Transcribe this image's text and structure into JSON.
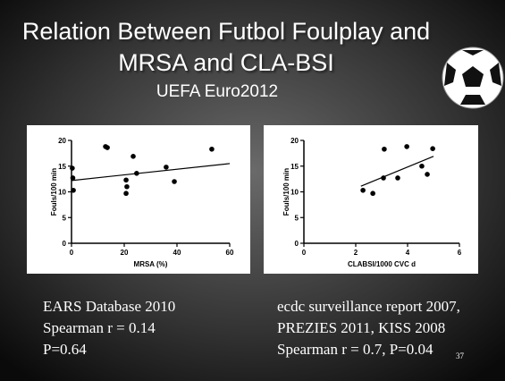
{
  "slide": {
    "title_lines": [
      "Relation Between Futbol Foulplay and",
      "MRSA and CLA-BSI"
    ],
    "subtitle": "UEFA Euro2012",
    "left_caption": [
      "EARS Database 2010",
      "Spearman r = 0.14",
      "P=0.64"
    ],
    "right_caption": [
      "ecdc surveillance report 2007,",
      "PREZIES 2011, KISS 2008",
      "Spearman r = 0.7, P=0.04"
    ],
    "page_number": "37"
  },
  "chart_data": [
    {
      "type": "scatter",
      "x_label": "MRSA (%)",
      "y_label": "Fouls/100 min",
      "color": "#000000",
      "x": [
        0.3,
        0.5,
        0.7,
        12.9,
        13.6,
        20.7,
        21,
        20.7,
        23.4,
        24.7,
        35.9,
        39,
        53.2
      ],
      "values": [
        14.6,
        12.7,
        10.3,
        18.8,
        18.6,
        12.3,
        11.0,
        9.7,
        16.9,
        13.6,
        14.8,
        12.0,
        18.3
      ],
      "trendline": {
        "x": [
          0,
          60
        ],
        "y": [
          12.2,
          15.5
        ]
      },
      "xlim": [
        0,
        60
      ],
      "xticks": [
        0,
        20,
        40,
        60
      ],
      "ylim": [
        0,
        20
      ],
      "yticks": [
        0,
        5,
        10,
        15,
        20
      ]
    },
    {
      "type": "scatter",
      "x_label": "CLABSI/1000 CVC d",
      "y_label": "Fouls/100 min",
      "color": "#000000",
      "x": [
        2.28,
        2.66,
        3.07,
        3.1,
        3.62,
        3.97,
        4.55,
        4.76,
        4.97
      ],
      "values": [
        10.3,
        9.7,
        12.7,
        18.3,
        12.7,
        18.8,
        15.0,
        13.4,
        18.4
      ],
      "trendline": {
        "x": [
          2.2,
          5.0
        ],
        "y": [
          11.1,
          16.9
        ]
      },
      "xlim": [
        0,
        6
      ],
      "xticks": [
        0,
        2,
        4,
        6
      ],
      "ylim": [
        0,
        20
      ],
      "yticks": [
        0,
        5,
        10,
        15,
        20
      ]
    }
  ]
}
